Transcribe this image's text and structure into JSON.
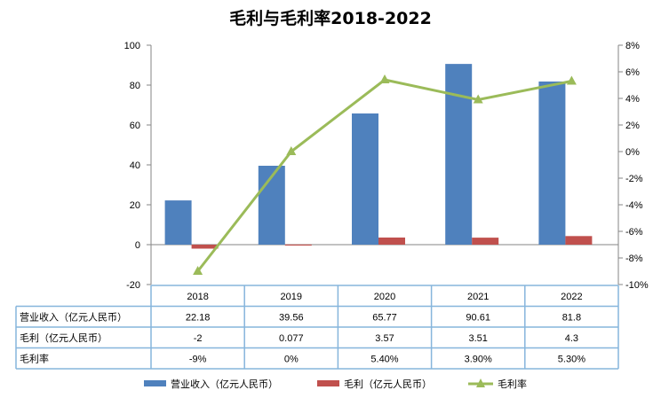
{
  "chart_data": {
    "type": "bar",
    "title": "毛利与毛利率2018-2022",
    "categories": [
      "2018",
      "2019",
      "2020",
      "2021",
      "2022"
    ],
    "ylim": [
      -20,
      100
    ],
    "yticks": [
      -20,
      0,
      20,
      40,
      60,
      80,
      100
    ],
    "y2lim": [
      -10,
      8
    ],
    "y2ticks": [
      "-10%",
      "-8%",
      "-6%",
      "-4%",
      "-2%",
      "0%",
      "2%",
      "4%",
      "6%",
      "8%"
    ],
    "series": [
      {
        "name": "营业收入（亿元人民币）",
        "kind": "bar",
        "axis": "left",
        "color": "#4F81BD",
        "values": [
          22.18,
          39.56,
          65.77,
          90.61,
          81.8
        ],
        "labels": [
          "22.18",
          "39.56",
          "65.77",
          "90.61",
          "81.8"
        ]
      },
      {
        "name": "毛利（亿元人民币）",
        "kind": "bar",
        "axis": "left",
        "color": "#C0504D",
        "values": [
          -2,
          0.077,
          3.57,
          3.51,
          4.3
        ],
        "labels": [
          "-2",
          "0.077",
          "3.57",
          "3.51",
          "4.3"
        ]
      },
      {
        "name": "毛利率",
        "kind": "line",
        "axis": "right",
        "color": "#9BBB59",
        "values": [
          -9,
          0,
          5.4,
          3.9,
          5.3
        ],
        "labels": [
          "-9%",
          "0%",
          "5.40%",
          "3.90%",
          "5.30%"
        ]
      }
    ],
    "table_row_labels": [
      "营业收入（亿元人民币）",
      "毛利（亿元人民币）",
      "毛利率"
    ],
    "legend_placement": "bottom",
    "grid": false
  }
}
